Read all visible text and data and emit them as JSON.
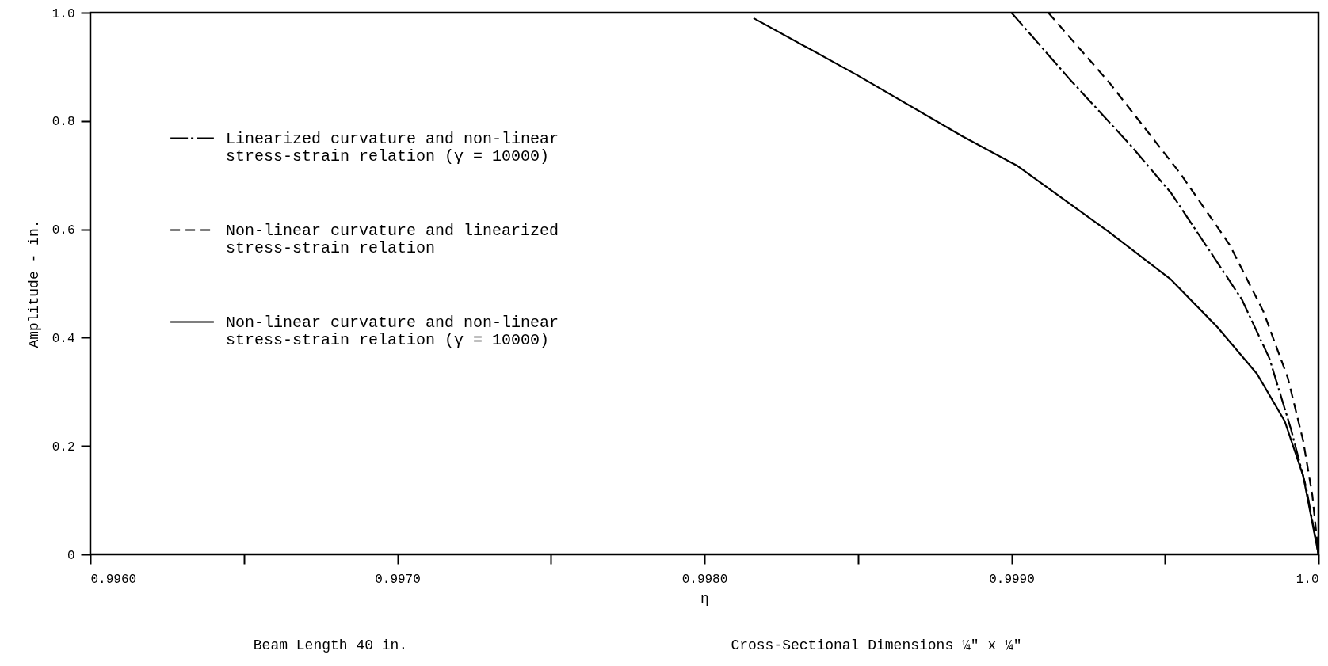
{
  "chart_data": {
    "type": "line",
    "xlabel": "η",
    "ylabel": "Amplitude - in.",
    "xlim": [
      0.996,
      1.0
    ],
    "ylim": [
      0,
      1.0
    ],
    "xticks": [
      {
        "value": 0.996,
        "label": "0.9960"
      },
      {
        "value": 0.9965,
        "label": null
      },
      {
        "value": 0.997,
        "label": "0.9970"
      },
      {
        "value": 0.9975,
        "label": null
      },
      {
        "value": 0.998,
        "label": "0.9980"
      },
      {
        "value": 0.9985,
        "label": null
      },
      {
        "value": 0.999,
        "label": "0.9990"
      },
      {
        "value": 0.9995,
        "label": null
      },
      {
        "value": 1.0,
        "label": "1.0"
      }
    ],
    "yticks": [
      {
        "value": 0,
        "label": "0"
      },
      0.2,
      0.4,
      0.6,
      0.8,
      {
        "value": 1.0,
        "label": "1.0"
      }
    ],
    "grid": false,
    "legend": "left",
    "marker": "none",
    "series": [
      {
        "name": "Linearized curvature and non-linear stress-strain relation (γ = 10000)",
        "color": "#000000",
        "line_style": "dashdot",
        "x": [
          0.999,
          0.99919,
          0.99939,
          0.99952,
          0.99964,
          0.99975,
          0.99984,
          0.99991,
          0.99996,
          1.0
        ],
        "values": [
          1.0,
          0.877,
          0.754,
          0.667,
          0.565,
          0.471,
          0.362,
          0.232,
          0.123,
          0
        ]
      },
      {
        "name": "Non-linear curvature and linearized stress-strain relation",
        "color": "#000000",
        "line_style": "dashed",
        "x": [
          0.99912,
          0.99932,
          0.99955,
          0.99971,
          0.99982,
          0.9999,
          0.99995,
          0.99998,
          1.0
        ],
        "values": [
          1.0,
          0.87,
          0.703,
          0.572,
          0.449,
          0.326,
          0.21,
          0.109,
          0
        ]
      },
      {
        "name": "Non-linear curvature and non-linear stress-strain relation (γ = 10000)",
        "color": "#000000",
        "line_style": "solid",
        "x": [
          0.99816,
          0.9985,
          0.99884,
          0.99902,
          0.99932,
          0.99952,
          0.99967,
          0.9998,
          0.99989,
          0.99995,
          1.0
        ],
        "values": [
          0.99,
          0.884,
          0.772,
          0.717,
          0.594,
          0.507,
          0.42,
          0.333,
          0.246,
          0.145,
          0
        ]
      }
    ],
    "annotations": [
      "Beam Length 40 in.",
      "Cross-Sectional Dimensions ¼\" x ¼\""
    ]
  }
}
